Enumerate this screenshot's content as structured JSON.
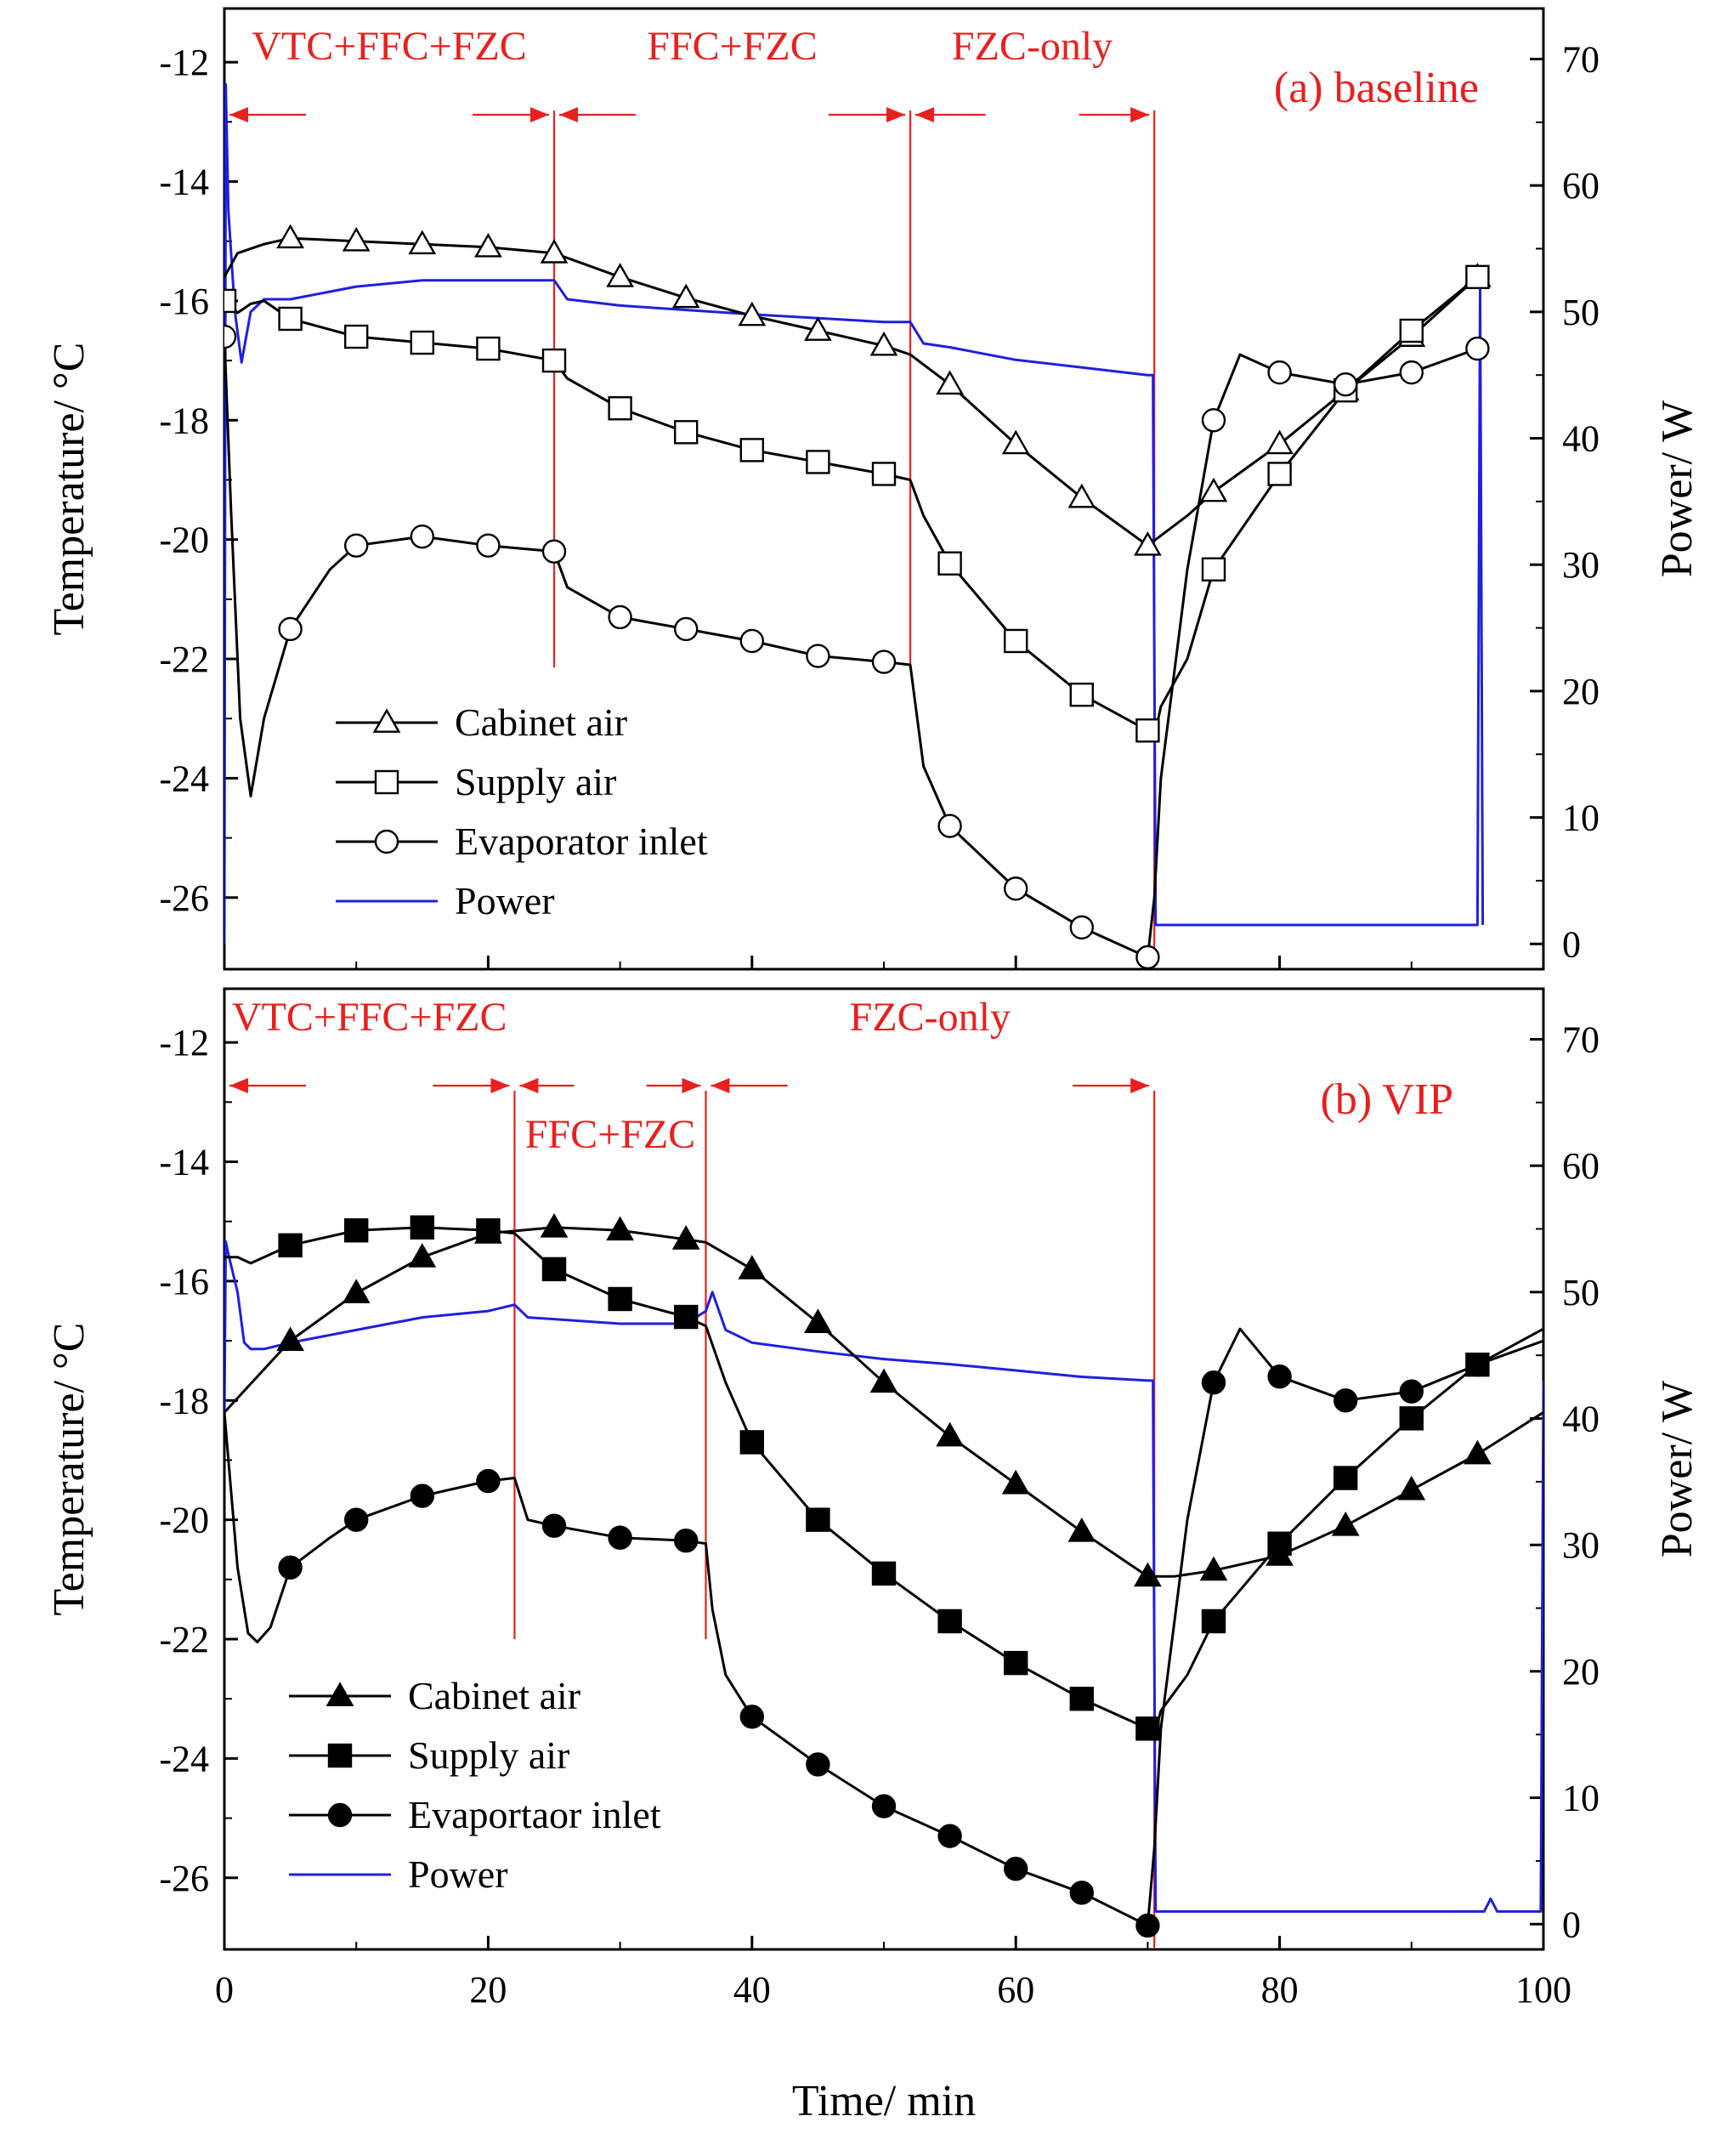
{
  "chart_data": [
    {
      "type": "line",
      "title": "(a) baseline",
      "xlabel": "Time/ min",
      "ylabel": "Temperature/ °C",
      "y2label": "Power/ W",
      "xlim": [
        0,
        100
      ],
      "ylim": [
        -27.2,
        -11.1
      ],
      "y2lim": [
        -2,
        74
      ],
      "xticks": [
        0,
        20,
        40,
        60,
        80,
        100
      ],
      "yticks": [
        -12,
        -14,
        -16,
        -18,
        -20,
        -22,
        -24,
        -26
      ],
      "y2ticks": [
        0,
        10,
        20,
        30,
        40,
        50,
        60,
        70
      ],
      "phase_lines": [
        25,
        52,
        70.5
      ],
      "phases": [
        {
          "label": "VTC+FFC+FZC",
          "start": 0,
          "end": 25
        },
        {
          "label": "FFC+FZC",
          "start": 25,
          "end": 52
        },
        {
          "label": "FZC-only",
          "start": 52,
          "end": 70.5
        }
      ],
      "legend": [
        "Cabinet air",
        "Supply air",
        "Evaporator inlet",
        "Power"
      ],
      "legend_position": "bottom-left",
      "series": [
        {
          "name": "Cabinet air",
          "axis": "left",
          "marker": "triangle-open",
          "x": [
            0,
            1,
            3,
            5,
            10,
            15,
            20,
            25,
            30,
            35,
            40,
            45,
            50,
            52,
            55,
            60,
            65,
            70,
            73,
            75,
            80,
            85,
            90,
            95
          ],
          "y": [
            -15.6,
            -15.2,
            -15.05,
            -14.95,
            -15.0,
            -15.05,
            -15.1,
            -15.2,
            -15.6,
            -15.95,
            -16.25,
            -16.5,
            -16.75,
            -16.9,
            -17.4,
            -18.4,
            -19.3,
            -20.1,
            -19.6,
            -19.2,
            -18.4,
            -17.5,
            -16.6,
            -15.6
          ],
          "marker_x": [
            5,
            10,
            15,
            20,
            25,
            30,
            35,
            40,
            45,
            50,
            55,
            60,
            65,
            70,
            75,
            80,
            85,
            90,
            95
          ]
        },
        {
          "name": "Supply air",
          "axis": "left",
          "marker": "square-open",
          "x": [
            0,
            1,
            2,
            3,
            5,
            10,
            15,
            20,
            25,
            26,
            30,
            35,
            40,
            45,
            50,
            52,
            53,
            55,
            60,
            65,
            70,
            70.5,
            71,
            72,
            73,
            75,
            80,
            85,
            90,
            95
          ],
          "y": [
            -16.0,
            -16.2,
            -16.05,
            -16.0,
            -16.3,
            -16.6,
            -16.7,
            -16.8,
            -17.0,
            -17.3,
            -17.8,
            -18.2,
            -18.5,
            -18.7,
            -18.9,
            -19.0,
            -19.6,
            -20.4,
            -21.7,
            -22.6,
            -23.2,
            -23.3,
            -22.8,
            -22.4,
            -22.0,
            -20.5,
            -18.9,
            -17.5,
            -16.5,
            -15.6
          ],
          "marker_x": [
            0,
            5,
            10,
            15,
            20,
            25,
            30,
            35,
            40,
            45,
            50,
            55,
            60,
            65,
            70,
            75,
            80,
            85,
            90,
            95
          ]
        },
        {
          "name": "Evaporator inlet",
          "axis": "left",
          "marker": "circle-open",
          "x": [
            0,
            0.5,
            1.2,
            2.0,
            3,
            5,
            8,
            10,
            15,
            20,
            25,
            26,
            30,
            35,
            40,
            45,
            50,
            52,
            53,
            55,
            60,
            65,
            70,
            70.5,
            71,
            73,
            75,
            77,
            80,
            85,
            90,
            95
          ],
          "y": [
            -16.6,
            -19.5,
            -23.0,
            -24.3,
            -23.0,
            -21.5,
            -20.5,
            -20.1,
            -19.95,
            -20.1,
            -20.2,
            -20.8,
            -21.3,
            -21.5,
            -21.7,
            -21.95,
            -22.05,
            -22.1,
            -23.8,
            -24.8,
            -25.85,
            -26.5,
            -27.0,
            -26.0,
            -24.0,
            -20.5,
            -18.0,
            -16.9,
            -17.2,
            -17.4,
            -17.2,
            -16.8
          ],
          "marker_x": [
            0,
            5,
            10,
            15,
            20,
            25,
            30,
            35,
            40,
            45,
            50,
            55,
            60,
            65,
            70,
            75,
            80,
            85,
            90,
            95
          ]
        },
        {
          "name": "Power",
          "axis": "right",
          "color": "#1f1fe0",
          "x": [
            0,
            0.1,
            0.3,
            0.8,
            1.3,
            2,
            3,
            5,
            10,
            15,
            20,
            25,
            26,
            30,
            40,
            50,
            52,
            53,
            55,
            60,
            70,
            70.4,
            70.6,
            95,
            95.2,
            95.4
          ],
          "y": [
            0,
            68,
            58,
            50,
            46,
            50,
            51,
            51,
            52,
            52.5,
            52.5,
            52.5,
            51,
            50.5,
            49.8,
            49.2,
            49.2,
            47.5,
            47.2,
            46.2,
            45,
            45,
            1.5,
            1.5,
            52,
            1.5
          ]
        }
      ]
    },
    {
      "type": "line",
      "title": "(b) VIP",
      "xlabel": "Time/ min",
      "ylabel": "Temperature/ °C",
      "y2label": "Power/ W",
      "xlim": [
        0,
        100
      ],
      "ylim": [
        -27.2,
        -11.1
      ],
      "y2lim": [
        -2,
        74
      ],
      "xticks": [
        0,
        20,
        40,
        60,
        80,
        100
      ],
      "yticks": [
        -12,
        -14,
        -16,
        -18,
        -20,
        -22,
        -24,
        -26
      ],
      "y2ticks": [
        0,
        10,
        20,
        30,
        40,
        50,
        60,
        70
      ],
      "phase_lines": [
        22,
        36.5,
        70.5
      ],
      "phases": [
        {
          "label": "VTC+FFC+FZC",
          "start": 0,
          "end": 22
        },
        {
          "label": "FFC+FZC",
          "start": 22,
          "end": 36.5
        },
        {
          "label": "FZC-only",
          "start": 36.5,
          "end": 70.5
        }
      ],
      "legend": [
        "Cabinet air",
        "Supply air",
        "Evaportaor inlet",
        "Power"
      ],
      "legend_position": "bottom-left",
      "series": [
        {
          "name": "Cabinet air",
          "axis": "left",
          "marker": "triangle-filled",
          "x": [
            0,
            5,
            10,
            15,
            20,
            25,
            30,
            35,
            36.5,
            40,
            45,
            50,
            55,
            60,
            65,
            70,
            72,
            75,
            80,
            85,
            90,
            95,
            100
          ],
          "y": [
            -18.2,
            -17.0,
            -16.2,
            -15.6,
            -15.2,
            -15.1,
            -15.15,
            -15.3,
            -15.35,
            -15.8,
            -16.7,
            -17.7,
            -18.6,
            -19.4,
            -20.2,
            -20.95,
            -20.95,
            -20.85,
            -20.6,
            -20.1,
            -19.5,
            -18.9,
            -18.2
          ],
          "marker_x": [
            5,
            10,
            15,
            20,
            25,
            30,
            35,
            40,
            45,
            50,
            55,
            60,
            65,
            70,
            75,
            80,
            85,
            90,
            95
          ]
        },
        {
          "name": "Supply air",
          "axis": "left",
          "marker": "square-filled",
          "x": [
            0,
            1,
            2,
            5,
            10,
            15,
            20,
            22,
            25,
            30,
            35,
            36.5,
            38,
            40,
            45,
            50,
            55,
            60,
            65,
            70,
            70.5,
            71,
            73,
            75,
            80,
            85,
            90,
            95,
            100
          ],
          "y": [
            -15.6,
            -15.6,
            -15.7,
            -15.4,
            -15.15,
            -15.1,
            -15.15,
            -15.2,
            -15.8,
            -16.3,
            -16.6,
            -16.75,
            -17.7,
            -18.7,
            -20.0,
            -20.9,
            -21.7,
            -22.4,
            -23.0,
            -23.5,
            -23.6,
            -23.2,
            -22.6,
            -21.7,
            -20.4,
            -19.3,
            -18.3,
            -17.4,
            -17.0
          ],
          "marker_x": [
            5,
            10,
            15,
            20,
            25,
            30,
            35,
            40,
            45,
            50,
            55,
            60,
            65,
            70,
            75,
            80,
            85,
            90,
            95
          ]
        },
        {
          "name": "Evaportaor inlet",
          "axis": "left",
          "marker": "circle-filled",
          "x": [
            0,
            1,
            1.8,
            2.5,
            3.5,
            5,
            8,
            10,
            15,
            20,
            22,
            23,
            25,
            30,
            35,
            36.5,
            37,
            38,
            40,
            45,
            50,
            55,
            60,
            65,
            70,
            70.5,
            71,
            73,
            75,
            77,
            80,
            85,
            90,
            95,
            100
          ],
          "y": [
            -18.2,
            -20.8,
            -21.9,
            -22.05,
            -21.8,
            -20.8,
            -20.3,
            -20.0,
            -19.6,
            -19.35,
            -19.3,
            -20.0,
            -20.1,
            -20.3,
            -20.35,
            -20.4,
            -21.5,
            -22.6,
            -23.3,
            -24.1,
            -24.8,
            -25.3,
            -25.85,
            -26.25,
            -26.8,
            -25.5,
            -23.5,
            -20.0,
            -17.7,
            -16.8,
            -17.6,
            -18.0,
            -17.85,
            -17.4,
            -16.8
          ],
          "marker_x": [
            5,
            10,
            15,
            20,
            25,
            30,
            35,
            40,
            45,
            50,
            55,
            60,
            65,
            70,
            75,
            80,
            85,
            90,
            95
          ]
        },
        {
          "name": "Power",
          "axis": "right",
          "color": "#1f1fe0",
          "x": [
            0,
            0.1,
            0.3,
            1,
            1.5,
            2,
            3,
            5,
            10,
            15,
            20,
            22,
            23,
            30,
            35,
            36.5,
            37,
            38,
            40,
            45,
            50,
            55,
            60,
            65,
            70,
            70.4,
            70.6,
            95,
            95.5,
            96,
            96.5,
            99.8,
            100
          ],
          "y": [
            40,
            54,
            53,
            50,
            46,
            45.5,
            45.5,
            46,
            47,
            48,
            48.5,
            49,
            48,
            47.5,
            47.5,
            48.5,
            50,
            47,
            46,
            45.3,
            44.7,
            44.3,
            43.8,
            43.3,
            43,
            43,
            1,
            1,
            1,
            2,
            1,
            1,
            43
          ]
        }
      ]
    }
  ]
}
